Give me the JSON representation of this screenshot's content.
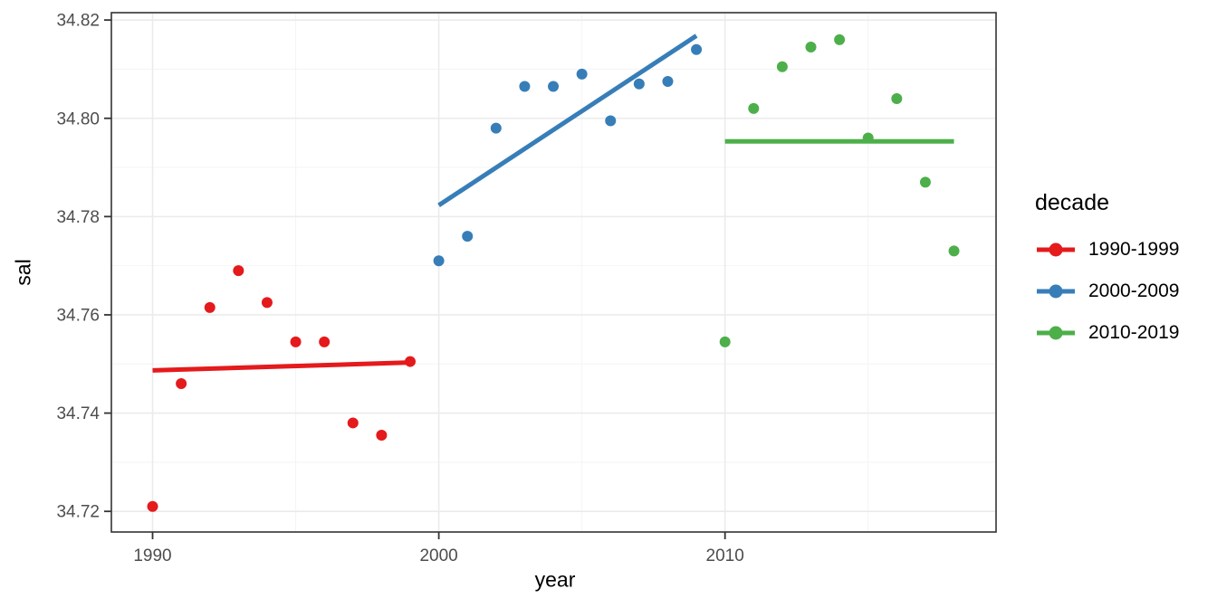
{
  "chart_data": {
    "type": "scatter",
    "title": "",
    "xlabel": "year",
    "ylabel": "sal",
    "xlim": [
      1988.56,
      2019.47
    ],
    "ylim": [
      34.7158,
      34.8215
    ],
    "x_ticks": [
      1990,
      2000,
      2010
    ],
    "x_tick_labels": [
      "1990",
      "2000",
      "2010"
    ],
    "x_minor_ticks": [
      1995,
      2005,
      2015
    ],
    "y_ticks": [
      34.72,
      34.74,
      34.76,
      34.78,
      34.8,
      34.82
    ],
    "y_tick_labels": [
      "34.72",
      "34.74",
      "34.76",
      "34.78",
      "34.80",
      "34.82"
    ],
    "y_minor_ticks": [
      34.73,
      34.75,
      34.77,
      34.79,
      34.81
    ],
    "grid": true,
    "legend_position": "right",
    "legend_title": "decade",
    "series": [
      {
        "name": "1990-1999",
        "color": "#E41A1C",
        "x": [
          1990,
          1991,
          1992,
          1993,
          1994,
          1995,
          1996,
          1997,
          1998,
          1999
        ],
        "y": [
          34.721,
          34.746,
          34.7615,
          34.769,
          34.7625,
          34.7545,
          34.7545,
          34.738,
          34.7355,
          34.7505
        ],
        "trend": {
          "x1": 1990,
          "y1": 34.7487,
          "x2": 1999,
          "y2": 34.7503
        }
      },
      {
        "name": "2000-2009",
        "color": "#377EB8",
        "x": [
          2000,
          2001,
          2002,
          2003,
          2004,
          2005,
          2006,
          2007,
          2008,
          2009
        ],
        "y": [
          34.771,
          34.776,
          34.798,
          34.8065,
          34.8065,
          34.809,
          34.7995,
          34.807,
          34.8075,
          34.814
        ],
        "trend": {
          "x1": 2000,
          "y1": 34.7823,
          "x2": 2009,
          "y2": 34.8168
        }
      },
      {
        "name": "2010-2019",
        "color": "#4DAF4A",
        "x": [
          2010,
          2011,
          2012,
          2013,
          2014,
          2015,
          2016,
          2017,
          2018
        ],
        "y": [
          34.7545,
          34.802,
          34.8105,
          34.8145,
          34.816,
          34.796,
          34.804,
          34.787,
          34.773
        ],
        "trend": {
          "x1": 2010,
          "y1": 34.7953,
          "x2": 2018,
          "y2": 34.7953
        }
      }
    ],
    "colors": {
      "background": "#FFFFFF",
      "panel_background": "#FFFFFF",
      "panel_border": "#333333",
      "grid_major": "#EBEBEB",
      "grid_minor": "#F4F4F4",
      "tick_mark": "#333333",
      "tick_label": "#4D4D4D",
      "axis_title": "#000000"
    }
  }
}
